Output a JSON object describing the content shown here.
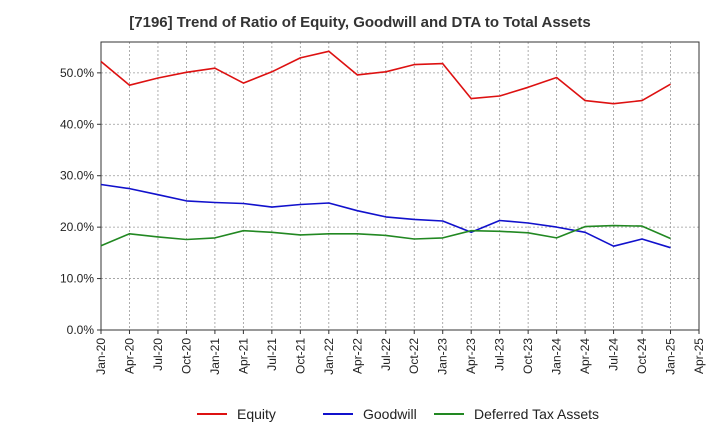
{
  "chart_data": {
    "type": "line",
    "title": "[7196]  Trend of Ratio of Equity, Goodwill and DTA to Total Assets",
    "xlabel": "",
    "ylabel": "",
    "ylim": [
      0,
      56
    ],
    "yticks": [
      "0.0%",
      "10.0%",
      "20.0%",
      "30.0%",
      "40.0%",
      "50.0%"
    ],
    "ytick_values": [
      0,
      10,
      20,
      30,
      40,
      50
    ],
    "xticks": [
      "Jan-20",
      "Apr-20",
      "Jul-20",
      "Oct-20",
      "Jan-21",
      "Apr-21",
      "Jul-21",
      "Oct-21",
      "Jan-22",
      "Apr-22",
      "Jul-22",
      "Oct-22",
      "Jan-23",
      "Apr-23",
      "Jul-23",
      "Oct-23",
      "Jan-24",
      "Apr-24",
      "Jul-24",
      "Oct-24",
      "Jan-25",
      "Apr-25"
    ],
    "grid": true,
    "legend_position": "bottom",
    "series": [
      {
        "name": "Equity",
        "color": "#dd1111",
        "values": [
          52.2,
          47.6,
          49.0,
          50.1,
          50.9,
          48.0,
          50.2,
          52.9,
          54.2,
          49.6,
          50.2,
          51.6,
          51.8,
          45.0,
          45.5,
          47.2,
          49.1,
          44.6,
          44.0,
          44.6,
          47.8
        ]
      },
      {
        "name": "Goodwill",
        "color": "#1111cc",
        "values": [
          28.3,
          27.5,
          26.3,
          25.1,
          24.8,
          24.6,
          23.9,
          24.4,
          24.7,
          23.2,
          22.0,
          21.5,
          21.2,
          19.0,
          21.3,
          20.8,
          20.0,
          19.0,
          16.3,
          17.7,
          16.0
        ]
      },
      {
        "name": "Deferred Tax Assets",
        "color": "#228822",
        "values": [
          16.4,
          18.7,
          18.1,
          17.6,
          17.9,
          19.3,
          19.0,
          18.5,
          18.7,
          18.7,
          18.4,
          17.7,
          17.9,
          19.3,
          19.2,
          18.9,
          17.9,
          20.1,
          20.3,
          20.2,
          17.8
        ]
      }
    ]
  }
}
